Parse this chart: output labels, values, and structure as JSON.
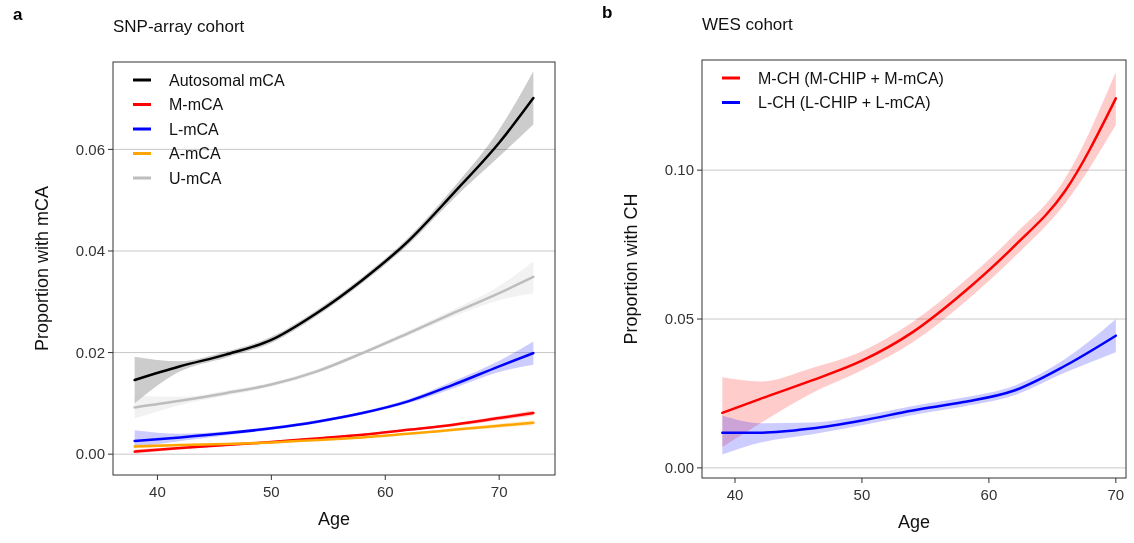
{
  "chart_data": [
    {
      "type": "line",
      "title": "SNP-array cohort",
      "annotations": [
        "a"
      ],
      "xlabel": "Age",
      "ylabel": "Proportion with mCA",
      "x": [
        38,
        42,
        46,
        50,
        54,
        58,
        62,
        66,
        70,
        73
      ],
      "xlim": [
        36.1,
        74.9
      ],
      "xticks": [
        40,
        50,
        60,
        70
      ],
      "ylim": [
        -0.0041,
        0.0772
      ],
      "yticks": [
        {
          "value": 0,
          "label": "0.00"
        },
        {
          "value": 0.02,
          "label": "0.02"
        },
        {
          "value": 0.04,
          "label": "0.04"
        },
        {
          "value": 0.06,
          "label": "0.06"
        }
      ],
      "grid": "y",
      "legend": "top left",
      "line_style": "solid",
      "marker": "none",
      "series": [
        {
          "name": "Autosomal mCA",
          "color": "#000000",
          "values": [
            0.0146,
            0.0173,
            0.0196,
            0.0225,
            0.0278,
            0.0343,
            0.0419,
            0.0514,
            0.0613,
            0.0701
          ],
          "lower": [
            0.01,
            0.0163,
            0.019,
            0.0219,
            0.0272,
            0.0337,
            0.0412,
            0.0503,
            0.0586,
            0.0649
          ],
          "upper": [
            0.0192,
            0.0183,
            0.0202,
            0.0231,
            0.0284,
            0.0349,
            0.0426,
            0.0525,
            0.0639,
            0.0754
          ]
        },
        {
          "name": "M-mCA",
          "color": "#ff0000",
          "values": [
            0.0005,
            0.0012,
            0.0018,
            0.0024,
            0.0031,
            0.0038,
            0.0048,
            0.0058,
            0.0071,
            0.0081
          ],
          "lower": [
            0.0001,
            0.0009,
            0.0016,
            0.0022,
            0.0029,
            0.0036,
            0.0046,
            0.0055,
            0.0067,
            0.0076
          ],
          "upper": [
            0.0009,
            0.0015,
            0.002,
            0.0026,
            0.0033,
            0.004,
            0.005,
            0.0061,
            0.0075,
            0.0086
          ]
        },
        {
          "name": "L-mCA",
          "color": "#0000ff",
          "values": [
            0.0026,
            0.0033,
            0.0041,
            0.0051,
            0.0064,
            0.0081,
            0.0104,
            0.0137,
            0.0173,
            0.0199
          ],
          "lower": [
            0.0013,
            0.0026,
            0.0037,
            0.0048,
            0.0061,
            0.0078,
            0.01,
            0.013,
            0.0162,
            0.0176
          ],
          "upper": [
            0.0047,
            0.004,
            0.0045,
            0.0054,
            0.0067,
            0.0084,
            0.0108,
            0.0144,
            0.0184,
            0.0222
          ]
        },
        {
          "name": "A-mCA",
          "color": "#ffa500",
          "values": [
            0.0015,
            0.0018,
            0.002,
            0.0023,
            0.0028,
            0.0033,
            0.004,
            0.0048,
            0.0056,
            0.0062
          ],
          "lower": [
            0.0011,
            0.0016,
            0.0018,
            0.0021,
            0.0026,
            0.0031,
            0.0038,
            0.0045,
            0.0052,
            0.0057
          ],
          "upper": [
            0.0019,
            0.002,
            0.0022,
            0.0025,
            0.003,
            0.0035,
            0.0042,
            0.0051,
            0.006,
            0.0067
          ]
        },
        {
          "name": "U-mCA",
          "color": "#bdbdbd",
          "values": [
            0.0092,
            0.0105,
            0.012,
            0.0137,
            0.0163,
            0.0199,
            0.0238,
            0.0278,
            0.0317,
            0.0349
          ],
          "lower": [
            0.007,
            0.0097,
            0.0115,
            0.0133,
            0.0159,
            0.0195,
            0.0233,
            0.0271,
            0.0303,
            0.0317
          ],
          "upper": [
            0.0115,
            0.0113,
            0.0125,
            0.0141,
            0.0167,
            0.0203,
            0.0243,
            0.0285,
            0.0331,
            0.038
          ]
        }
      ]
    },
    {
      "type": "line",
      "title": "WES cohort",
      "annotations": [
        "b"
      ],
      "xlabel": "Age",
      "ylabel": "Proportion with CH",
      "x": [
        39,
        42,
        46,
        50,
        54,
        58,
        62,
        66,
        70
      ],
      "xlim": [
        37.4,
        70.8
      ],
      "xticks": [
        40,
        50,
        60,
        70
      ],
      "ylim": [
        -0.0034,
        0.137
      ],
      "yticks": [
        {
          "value": 0,
          "label": "0.00"
        },
        {
          "value": 0.05,
          "label": "0.05"
        },
        {
          "value": 0.1,
          "label": "0.10"
        }
      ],
      "grid": "y",
      "legend": "top left",
      "line_style": "solid",
      "marker": "none",
      "series": [
        {
          "name": "M-CH (M-CHIP + M-mCA)",
          "color": "#ff0000",
          "values": [
            0.0185,
            0.0232,
            0.0293,
            0.036,
            0.0456,
            0.0589,
            0.0745,
            0.093,
            0.1241
          ],
          "lower": [
            0.007,
            0.015,
            0.025,
            0.0328,
            0.0422,
            0.0553,
            0.0708,
            0.0888,
            0.1152
          ],
          "upper": [
            0.0304,
            0.029,
            0.0335,
            0.0392,
            0.049,
            0.0625,
            0.0782,
            0.0972,
            0.133
          ]
        },
        {
          "name": "L-CH (L-CHIP + L-mCA)",
          "color": "#0000ff",
          "values": [
            0.0118,
            0.0118,
            0.0132,
            0.0159,
            0.0193,
            0.0221,
            0.026,
            0.0343,
            0.0444
          ],
          "lower": [
            0.0045,
            0.0085,
            0.0112,
            0.0143,
            0.0178,
            0.0206,
            0.0244,
            0.032,
            0.0388
          ],
          "upper": [
            0.0176,
            0.015,
            0.0152,
            0.0175,
            0.0208,
            0.0236,
            0.0276,
            0.0366,
            0.0499
          ]
        }
      ]
    }
  ]
}
